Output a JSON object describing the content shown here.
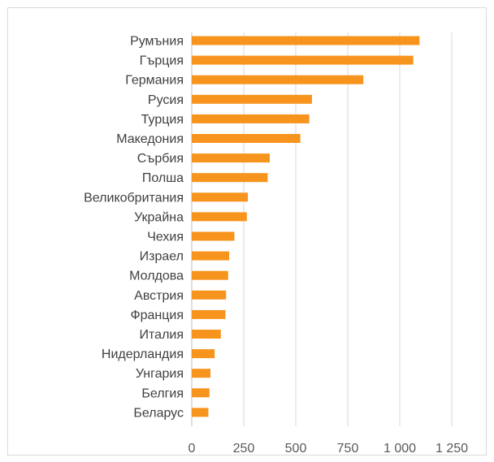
{
  "chart_data": {
    "type": "bar",
    "orientation": "horizontal",
    "categories": [
      "Румъния",
      "Гърция",
      "Германия",
      "Русия",
      "Турция",
      "Македония",
      "Сърбия",
      "Полша",
      "Великобритания",
      "Украйна",
      "Чехия",
      "Израел",
      "Молдова",
      "Австрия",
      "Франция",
      "Италия",
      "Нидерландия",
      "Унгария",
      "Белгия",
      "Беларус"
    ],
    "values": [
      1095,
      1065,
      825,
      578,
      565,
      522,
      375,
      365,
      270,
      265,
      205,
      180,
      175,
      165,
      162,
      140,
      110,
      90,
      85,
      80
    ],
    "bar_color": "#F7941D",
    "xlim": [
      0,
      1250
    ],
    "xticks": [
      0,
      250,
      500,
      750,
      1000,
      1250
    ],
    "xtick_labels": [
      "0",
      "250",
      "500",
      "750",
      "1 000",
      "1 250"
    ],
    "grid": true,
    "title": "",
    "xlabel": "",
    "ylabel": ""
  }
}
